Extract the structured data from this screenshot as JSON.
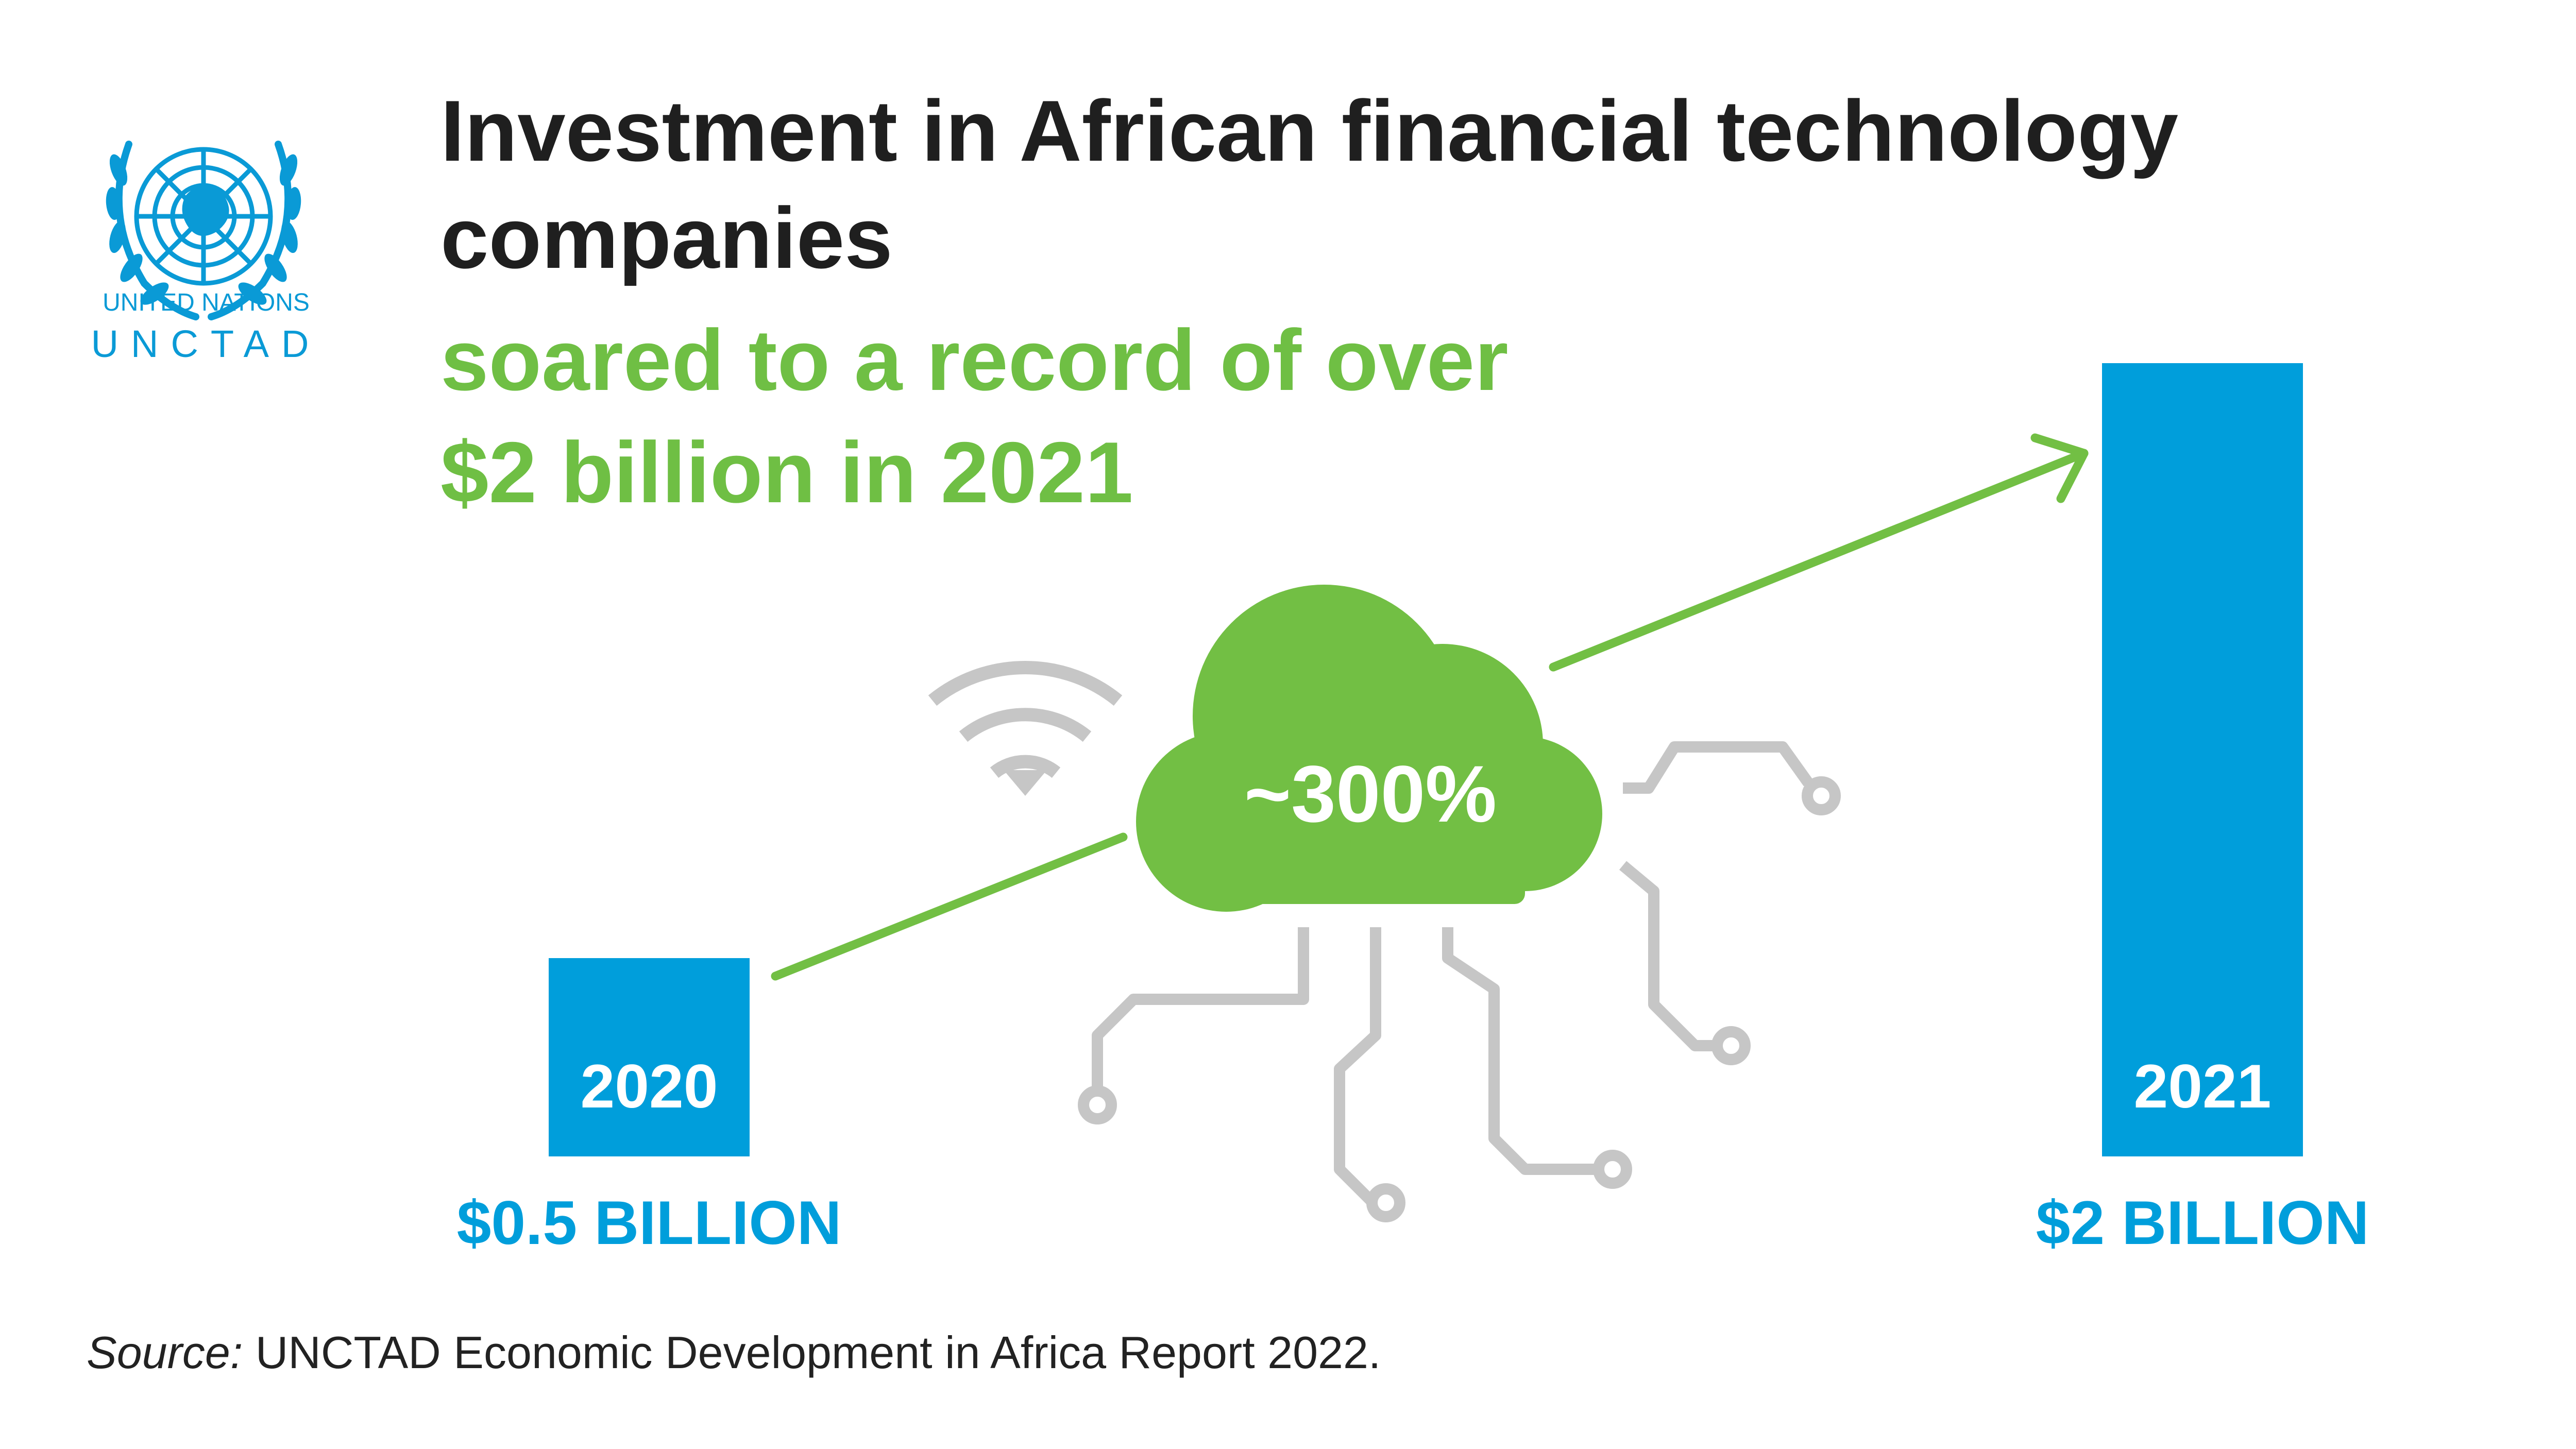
{
  "logo": {
    "org_line1": "UNITED NATIONS",
    "org_line2": "UNCTAD"
  },
  "header": {
    "title": "Investment in African financial technology companies",
    "subtitle_line1": "soared to a record of over",
    "subtitle_line2": "$2 billion in 2021"
  },
  "growth_label": "~300%",
  "colors": {
    "bar": "#009edb",
    "accent_green": "#72bf44",
    "circuit_gray": "#c6c6c6",
    "title": "#1f1f1f"
  },
  "icons": [
    "wifi-icon",
    "cloud-icon",
    "circuit-lines-icon",
    "growth-arrow-icon",
    "un-emblem-icon"
  ],
  "chart_data": {
    "type": "bar",
    "categories": [
      "2020",
      "2021"
    ],
    "values": [
      0.5,
      2
    ],
    "value_labels": [
      "$0.5 BILLION",
      "$2 BILLION"
    ],
    "unit": "billion USD",
    "ylim": [
      0,
      2
    ],
    "grid": false,
    "legend": "none"
  },
  "footer": {
    "source_label": "Source:",
    "source_text": "UNCTAD Economic Development in Africa Report 2022."
  }
}
